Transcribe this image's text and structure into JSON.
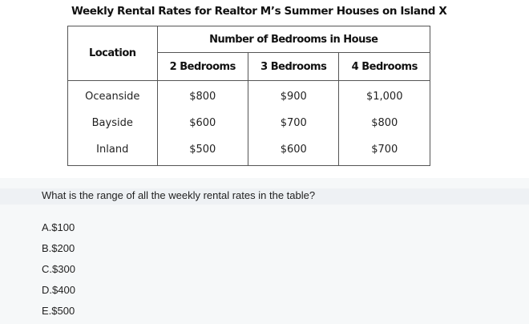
{
  "figure": {
    "title": "Weekly Rental Rates for Realtor M’s Summer Houses on Island X",
    "table": {
      "location_header": "Location",
      "group_header": "Number of Bedrooms in House",
      "columns": [
        "2 Bedrooms",
        "3 Bedrooms",
        "4 Bedrooms"
      ],
      "rows": [
        {
          "location": "Oceanside",
          "values": [
            "$800",
            "$900",
            "$1,000"
          ]
        },
        {
          "location": "Bayside",
          "values": [
            "$600",
            "$700",
            "$800"
          ]
        },
        {
          "location": "Inland",
          "values": [
            "$500",
            "$600",
            "$700"
          ]
        }
      ]
    }
  },
  "question": {
    "text": "What is the range of all the weekly rental rates in the table?",
    "options": [
      "A.$100",
      "B.$200",
      "C.$300",
      "D.$400",
      "E.$500"
    ]
  }
}
